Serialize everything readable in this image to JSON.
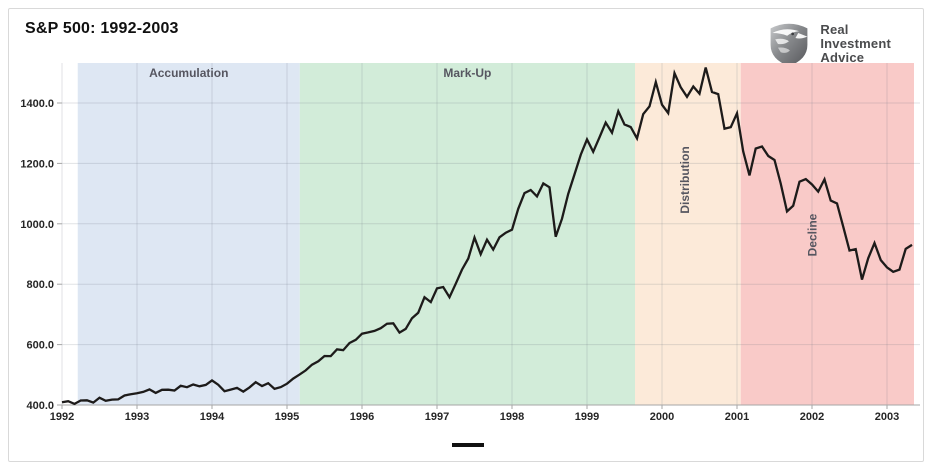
{
  "header": {
    "title": "S&P 500: 1992-2003",
    "logo": {
      "name": "Real Investment Advice",
      "icon": "eagle-shield-icon",
      "line1": "Real",
      "line2": "Investment",
      "line3": "Advice"
    }
  },
  "chart_data": {
    "type": "line",
    "title": "S&P 500: 1992-2003",
    "xlabel": "",
    "ylabel": "",
    "grid": true,
    "xlim": [
      1992,
      2003.44
    ],
    "ylim": [
      400,
      1535
    ],
    "x_ticks": [
      "1992",
      "1993",
      "1994",
      "1995",
      "1996",
      "1997",
      "1998",
      "1999",
      "2000",
      "2001",
      "2002",
      "2003"
    ],
    "y_ticks": [
      400,
      600,
      800,
      1000,
      1200,
      1400
    ],
    "y_tick_labels": [
      "400.0",
      "600.0",
      "800.0",
      "1000.0",
      "1200.0",
      "1400.0"
    ],
    "legend": {
      "position": "bottom-center",
      "marker": "line",
      "marker_color": "#111111",
      "label": ""
    },
    "series": [
      {
        "name": "S&P 500",
        "color": "#1d1b1a",
        "start": "1992-01",
        "frequency": "monthly",
        "values": [
          408.8,
          412.7,
          403.7,
          414.9,
          415.4,
          408.1,
          424.2,
          414.0,
          417.8,
          418.7,
          431.4,
          435.7,
          438.8,
          443.4,
          451.7,
          440.2,
          450.2,
          450.5,
          448.1,
          463.6,
          458.9,
          467.8,
          461.8,
          466.4,
          481.6,
          467.1,
          445.8,
          450.9,
          456.5,
          444.3,
          458.3,
          475.5,
          462.7,
          472.3,
          453.7,
          459.3,
          470.4,
          487.4,
          500.7,
          514.7,
          533.4,
          544.8,
          562.1,
          561.9,
          584.4,
          581.5,
          605.4,
          615.9,
          636.0,
          640.4,
          645.5,
          654.2,
          669.1,
          670.6,
          639.9,
          651.9,
          687.3,
          705.3,
          757.0,
          740.7,
          786.2,
          790.8,
          757.1,
          801.3,
          848.3,
          885.1,
          954.3,
          899.5,
          947.3,
          914.6,
          955.4,
          970.4,
          980.3,
          1049.3,
          1101.8,
          1111.8,
          1090.8,
          1133.8,
          1120.7,
          957.3,
          1017.0,
          1098.7,
          1163.6,
          1229.2,
          1279.6,
          1238.3,
          1286.4,
          1335.2,
          1301.8,
          1372.7,
          1328.7,
          1320.4,
          1282.7,
          1362.9,
          1388.9,
          1469.3,
          1394.5,
          1366.4,
          1498.6,
          1452.4,
          1420.6,
          1454.6,
          1430.8,
          1517.7,
          1436.5,
          1429.4,
          1315.0,
          1320.3,
          1366.0,
          1239.9,
          1160.3,
          1249.5,
          1255.8,
          1224.4,
          1211.2,
          1133.6,
          1040.9,
          1059.8,
          1139.5,
          1148.1,
          1130.2,
          1106.7,
          1147.4,
          1076.9,
          1067.1,
          989.8,
          911.6,
          916.1,
          815.3,
          885.8,
          936.3,
          879.8,
          855.7,
          841.2,
          848.2,
          916.9,
          930.1
        ]
      }
    ],
    "phases": [
      {
        "label": "Accumulation",
        "start": 1992.21,
        "end": 1995.17,
        "color": "#dee7f3",
        "label_rotation": 0
      },
      {
        "label": "Mark-Up",
        "start": 1995.17,
        "end": 1999.64,
        "color": "#d2ecd9",
        "label_rotation": 0
      },
      {
        "label": "Distribution",
        "start": 1999.64,
        "end": 2001.05,
        "color": "#fcead9",
        "label_rotation": -90
      },
      {
        "label": "Decline",
        "start": 2001.05,
        "end": 2003.36,
        "color": "#f9cac8",
        "label_rotation": -90
      }
    ],
    "phase_label_color": "#565660",
    "axis_color": "#a6a6a6",
    "tick_label_color": "#262626",
    "gridline_color": "rgba(100,110,125,0.20)"
  }
}
